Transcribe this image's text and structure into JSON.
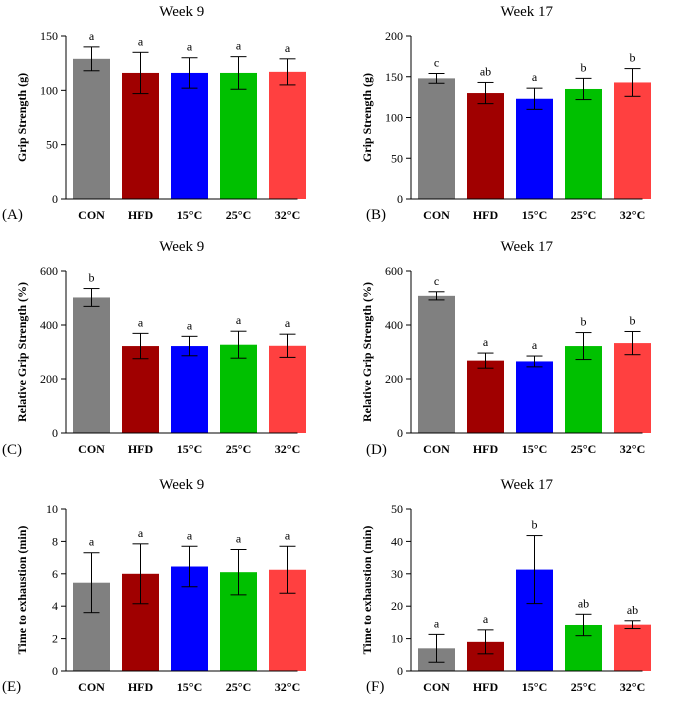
{
  "categories": [
    "CON",
    "HFD",
    "15°C",
    "25°C",
    "32°C"
  ],
  "colors": [
    "#808080",
    "#a00000",
    "#0000ff",
    "#00c000",
    "#ff4040"
  ],
  "chart_data": [
    {
      "type": "bar",
      "panel_label": "(A)",
      "title": "Week 9",
      "ylabel": "Grip Strength (g)",
      "xlabel": "",
      "ylim": [
        0,
        150
      ],
      "yticks": [
        0,
        50,
        100,
        150
      ],
      "categories": [
        "CON",
        "HFD",
        "15°C",
        "25°C",
        "32°C"
      ],
      "values": [
        129,
        116,
        116,
        116,
        117
      ],
      "errors": [
        11,
        19,
        14,
        15,
        12
      ],
      "letters": [
        "a",
        "a",
        "a",
        "a",
        "a"
      ]
    },
    {
      "type": "bar",
      "panel_label": "(B)",
      "title": "Week 17",
      "ylabel": "Grip Strength (g)",
      "xlabel": "",
      "ylim": [
        0,
        200
      ],
      "yticks": [
        0,
        50,
        100,
        150,
        200
      ],
      "categories": [
        "CON",
        "HFD",
        "15°C",
        "25°C",
        "32°C"
      ],
      "values": [
        148,
        130,
        123,
        135,
        143
      ],
      "errors": [
        6,
        13,
        13,
        13,
        17
      ],
      "letters": [
        "c",
        "ab",
        "a",
        "b",
        "b"
      ]
    },
    {
      "type": "bar",
      "panel_label": "(C)",
      "title": "Week 9",
      "ylabel": "Relative Grip Strength (%)",
      "xlabel": "",
      "ylim": [
        0,
        600
      ],
      "yticks": [
        0,
        200,
        400,
        600
      ],
      "categories": [
        "CON",
        "HFD",
        "15°C",
        "25°C",
        "32°C"
      ],
      "values": [
        502,
        322,
        322,
        327,
        323
      ],
      "errors": [
        33,
        47,
        36,
        50,
        43
      ],
      "letters": [
        "b",
        "a",
        "a",
        "a",
        "a"
      ]
    },
    {
      "type": "bar",
      "panel_label": "(D)",
      "title": "Week 17",
      "ylabel": "Relative Grip Strength (%)",
      "xlabel": "",
      "ylim": [
        0,
        600
      ],
      "yticks": [
        0,
        200,
        400,
        600
      ],
      "categories": [
        "CON",
        "HFD",
        "15°C",
        "25°C",
        "32°C"
      ],
      "values": [
        508,
        268,
        265,
        322,
        333
      ],
      "errors": [
        15,
        28,
        20,
        50,
        43
      ],
      "letters": [
        "c",
        "a",
        "a",
        "b",
        "b"
      ]
    },
    {
      "type": "bar",
      "panel_label": "(E)",
      "title": "Week 9",
      "ylabel": "Time to exhaustion (min)",
      "xlabel": "",
      "ylim": [
        0,
        10
      ],
      "yticks": [
        0,
        2,
        4,
        6,
        8,
        10
      ],
      "categories": [
        "CON",
        "HFD",
        "15°C",
        "25°C",
        "32°C"
      ],
      "values": [
        5.45,
        6.0,
        6.45,
        6.1,
        6.25
      ],
      "errors": [
        1.85,
        1.85,
        1.25,
        1.4,
        1.45
      ],
      "letters": [
        "a",
        "a",
        "a",
        "a",
        "a"
      ]
    },
    {
      "type": "bar",
      "panel_label": "(F)",
      "title": "Week 17",
      "ylabel": "Time to exhaustion (min)",
      "xlabel": "",
      "ylim": [
        0,
        50
      ],
      "yticks": [
        0,
        10,
        20,
        30,
        40,
        50
      ],
      "categories": [
        "CON",
        "HFD",
        "15°C",
        "25°C",
        "32°C"
      ],
      "values": [
        7,
        9,
        31.3,
        14.2,
        14.3
      ],
      "errors": [
        4.3,
        3.7,
        10.5,
        3.3,
        1.2
      ],
      "letters": [
        "a",
        "a",
        "b",
        "ab",
        "ab"
      ]
    }
  ]
}
